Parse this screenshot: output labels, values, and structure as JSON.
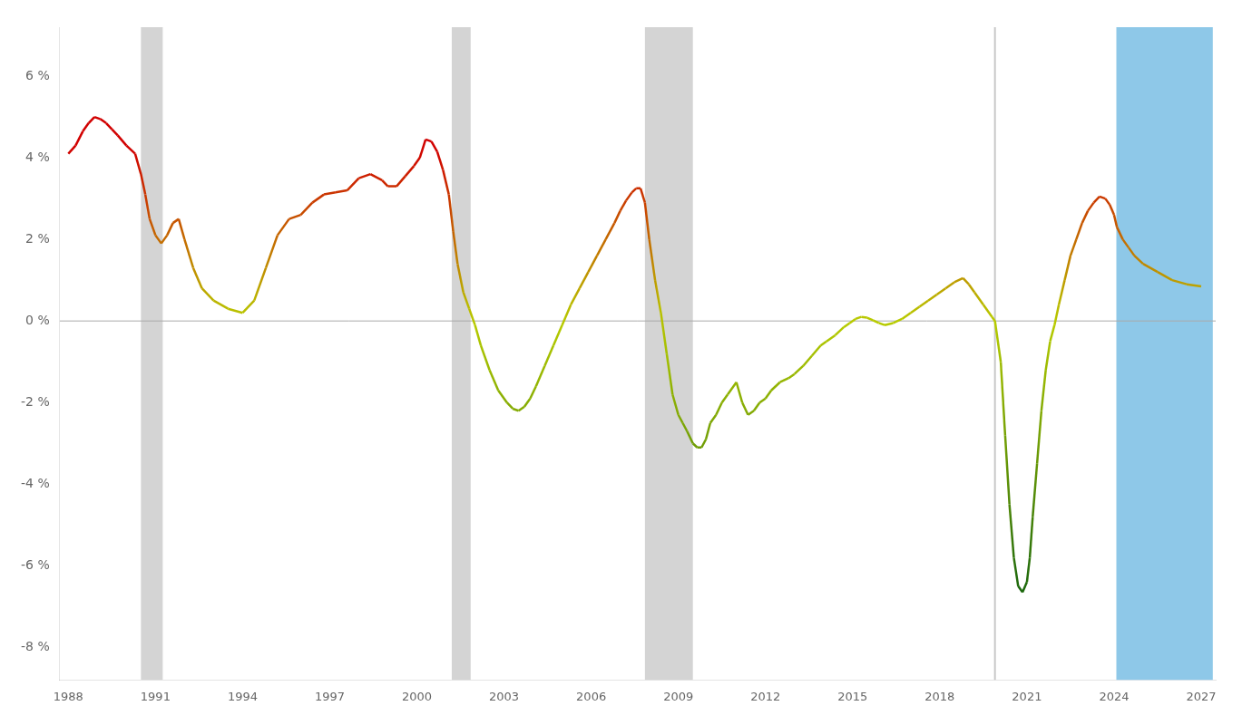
{
  "chart_data": {
    "type": "line",
    "x": [
      1988.0,
      1988.25,
      1988.5,
      1988.7,
      1988.9,
      1989.1,
      1989.3,
      1989.5,
      1989.7,
      1990.0,
      1990.3,
      1990.5,
      1990.65,
      1990.8,
      1991.0,
      1991.2,
      1991.4,
      1991.6,
      1991.8,
      1992.0,
      1992.3,
      1992.6,
      1993.0,
      1993.5,
      1994.0,
      1994.4,
      1994.8,
      1995.2,
      1995.6,
      1996.0,
      1996.4,
      1996.8,
      1997.2,
      1997.6,
      1998.0,
      1998.4,
      1998.8,
      1999.0,
      1999.3,
      1999.6,
      1999.9,
      2000.1,
      2000.3,
      2000.5,
      2000.7,
      2000.9,
      2001.1,
      2001.25,
      2001.4,
      2001.6,
      2001.8,
      2002.0,
      2002.2,
      2002.5,
      2002.8,
      2003.1,
      2003.3,
      2003.5,
      2003.7,
      2003.9,
      2004.1,
      2004.4,
      2004.7,
      2005.0,
      2005.3,
      2005.6,
      2005.9,
      2006.2,
      2006.5,
      2006.8,
      2007.0,
      2007.2,
      2007.4,
      2007.55,
      2007.7,
      2007.85,
      2008.0,
      2008.2,
      2008.4,
      2008.6,
      2008.8,
      2009.0,
      2009.15,
      2009.3,
      2009.5,
      2009.65,
      2009.8,
      2009.95,
      2010.1,
      2010.3,
      2010.5,
      2010.7,
      2011.0,
      2011.2,
      2011.4,
      2011.6,
      2011.8,
      2012.0,
      2012.2,
      2012.5,
      2012.8,
      2013.0,
      2013.3,
      2013.6,
      2013.9,
      2014.1,
      2014.4,
      2014.7,
      2014.9,
      2015.1,
      2015.3,
      2015.5,
      2015.7,
      2015.9,
      2016.1,
      2016.4,
      2016.7,
      2017.0,
      2017.3,
      2017.6,
      2017.9,
      2018.2,
      2018.5,
      2018.8,
      2019.0,
      2019.2,
      2019.5,
      2019.8,
      2019.9,
      2020.1,
      2020.25,
      2020.4,
      2020.55,
      2020.7,
      2020.85,
      2021.0,
      2021.1,
      2021.2,
      2021.35,
      2021.5,
      2021.65,
      2021.8,
      2021.95,
      2022.1,
      2022.3,
      2022.5,
      2022.7,
      2022.9,
      2023.1,
      2023.3,
      2023.5,
      2023.7,
      2023.85,
      2024.0,
      2024.1,
      2024.3,
      2024.5,
      2024.7,
      2025.0,
      2025.5,
      2026.0,
      2026.5,
      2027.0
    ],
    "series": [
      {
        "values": [
          4.1,
          4.3,
          4.65,
          4.85,
          5.0,
          4.95,
          4.85,
          4.7,
          4.55,
          4.3,
          4.1,
          3.6,
          3.1,
          2.5,
          2.1,
          1.9,
          2.1,
          2.4,
          2.5,
          2.0,
          1.3,
          0.8,
          0.5,
          0.3,
          0.2,
          0.5,
          1.3,
          2.1,
          2.5,
          2.6,
          2.9,
          3.1,
          3.15,
          3.2,
          3.5,
          3.6,
          3.45,
          3.3,
          3.3,
          3.55,
          3.8,
          4.0,
          4.45,
          4.4,
          4.15,
          3.7,
          3.1,
          2.2,
          1.4,
          0.7,
          0.3,
          -0.1,
          -0.6,
          -1.2,
          -1.7,
          -2.0,
          -2.15,
          -2.2,
          -2.1,
          -1.9,
          -1.6,
          -1.1,
          -0.6,
          -0.1,
          0.4,
          0.8,
          1.2,
          1.6,
          2.0,
          2.4,
          2.7,
          2.95,
          3.15,
          3.25,
          3.25,
          2.9,
          2.0,
          1.0,
          0.2,
          -0.8,
          -1.8,
          -2.3,
          -2.5,
          -2.7,
          -3.0,
          -3.1,
          -3.1,
          -2.9,
          -2.5,
          -2.3,
          -2.0,
          -1.8,
          -1.5,
          -2.0,
          -2.3,
          -2.2,
          -2.0,
          -1.9,
          -1.7,
          -1.5,
          -1.4,
          -1.3,
          -1.1,
          -0.85,
          -0.6,
          -0.5,
          -0.35,
          -0.15,
          -0.05,
          0.05,
          0.1,
          0.08,
          0.02,
          -0.05,
          -0.1,
          -0.05,
          0.05,
          0.2,
          0.35,
          0.5,
          0.65,
          0.8,
          0.95,
          1.05,
          0.9,
          0.7,
          0.4,
          0.1,
          0.0,
          -1.0,
          -2.8,
          -4.5,
          -5.8,
          -6.5,
          -6.65,
          -6.4,
          -5.8,
          -4.8,
          -3.5,
          -2.2,
          -1.2,
          -0.5,
          -0.1,
          0.4,
          1.0,
          1.6,
          2.0,
          2.4,
          2.7,
          2.9,
          3.05,
          3.0,
          2.85,
          2.6,
          2.3,
          2.0,
          1.8,
          1.6,
          1.4,
          1.2,
          1.0,
          0.9,
          0.85
        ],
        "color_stops": [
          {
            "value": -6.7,
            "color": "#1a660d"
          },
          {
            "value": 0,
            "color": "#b8cc00"
          },
          {
            "value": 4.2,
            "color": "#d10000"
          }
        ]
      }
    ],
    "xlim": [
      1987.7,
      2027.5
    ],
    "xticks": [
      1988,
      1991,
      1994,
      1997,
      2000,
      2003,
      2006,
      2009,
      2012,
      2015,
      2018,
      2021,
      2024,
      2027
    ],
    "ylim": [
      -8.8,
      7.2
    ],
    "yticks": [
      {
        "value": -8,
        "label": "-8 %"
      },
      {
        "value": -6,
        "label": "-6 %"
      },
      {
        "value": -4,
        "label": "-4 %"
      },
      {
        "value": -2,
        "label": "-2 %"
      },
      {
        "value": 0,
        "label": "0 %"
      },
      {
        "value": 2,
        "label": "2 %"
      },
      {
        "value": 4,
        "label": "4 %"
      },
      {
        "value": 6,
        "label": "6 %"
      }
    ],
    "grid": false,
    "shaded_ranges": [
      {
        "from": 1990.5,
        "to": 1991.25,
        "color": "#d4d4d4"
      },
      {
        "from": 2001.2,
        "to": 2001.85,
        "color": "#d4d4d4"
      },
      {
        "from": 2007.85,
        "to": 2009.5,
        "color": "#d4d4d4"
      },
      {
        "from": 2024.08,
        "to": 2027.4,
        "color": "#8ec8e8"
      }
    ],
    "vertical_lines": [
      {
        "x": 2019.9,
        "color": "#c8c8c8"
      }
    ],
    "horizontal_lines": [
      {
        "y": 0,
        "color": "#aaaaaa"
      }
    ]
  }
}
